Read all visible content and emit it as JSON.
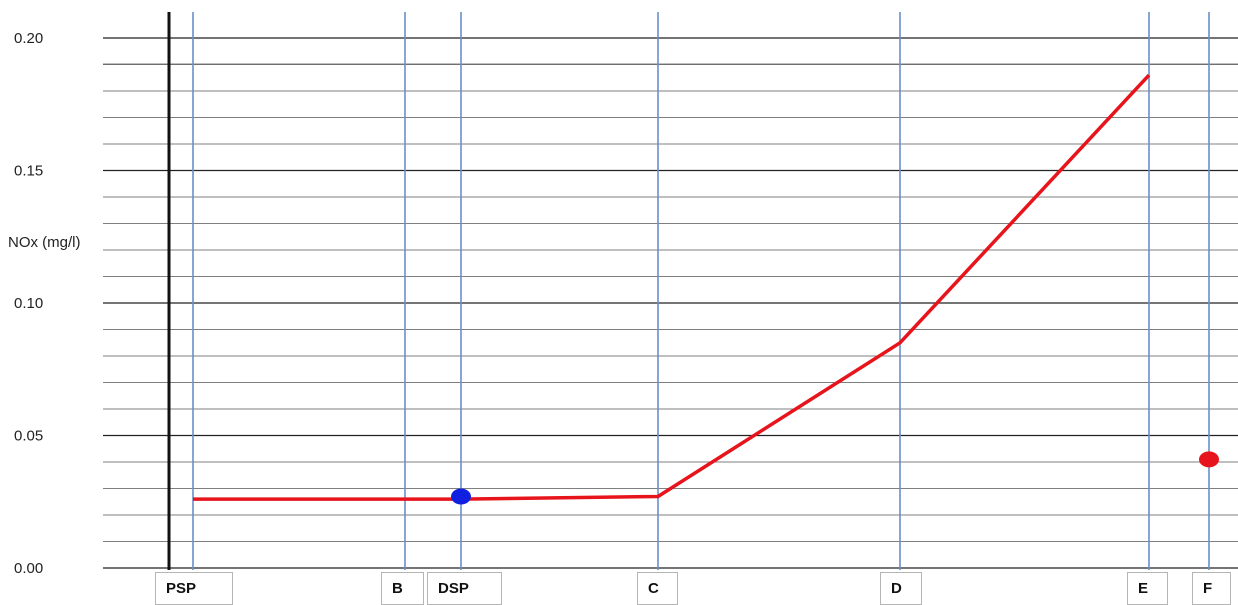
{
  "chart_data": {
    "type": "line",
    "ylabel": "NOx (mg/l)",
    "ylim": [
      0,
      0.2
    ],
    "yticks": [
      "0.00",
      "0.05",
      "0.10",
      "0.15",
      "0.20"
    ],
    "categories": [
      "PSP",
      "B",
      "DSP",
      "C",
      "D",
      "E",
      "F"
    ],
    "series": [
      {
        "color": "#e8141c",
        "points": [
          {
            "x": "PSP",
            "y": 0.026
          },
          {
            "x": "B",
            "y": 0.026
          },
          {
            "x": "DSP",
            "y": 0.026
          },
          {
            "x": "C",
            "y": 0.027
          },
          {
            "x": "D",
            "y": 0.085
          },
          {
            "x": "E",
            "y": 0.186
          }
        ]
      }
    ],
    "markers": [
      {
        "x": "DSP",
        "y": 0.027,
        "color": "#1020e0"
      },
      {
        "x": "F",
        "y": 0.041,
        "color": "#e8141c"
      }
    ],
    "grid": true
  }
}
